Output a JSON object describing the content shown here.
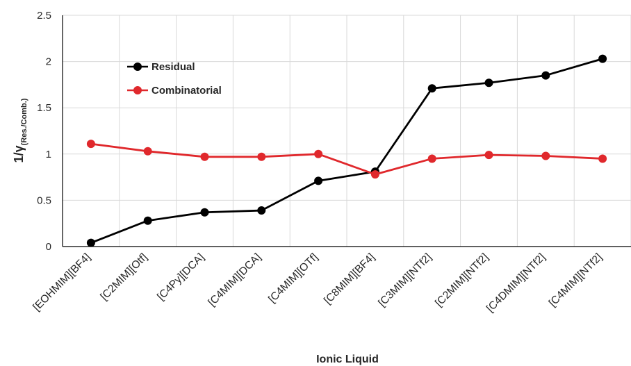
{
  "chart_data": {
    "type": "line",
    "title": "",
    "xlabel": "Ionic Liquid",
    "ylabel": {
      "main": "1/γ",
      "subscript": "(Res./Comb.)"
    },
    "ylim": [
      0,
      2.5
    ],
    "yticks": [
      "0",
      "0.5",
      "1",
      "1.5",
      "2",
      "2.5"
    ],
    "ytick_values": [
      0,
      0.5,
      1,
      1.5,
      2,
      2.5
    ],
    "grid": true,
    "legend_position": "top-left",
    "categories": [
      "[EOHMIM][BF4]",
      "[C2MIM][Otf]",
      "[C4Py][DCA]",
      "[C4MIM][DCA]",
      "[C4MIM][OTf]",
      "[C8MIM][BF4]",
      "[C3MIM][NTf2]",
      "[C2MIM][NTf2]",
      "[C4DMIM][NTf2]",
      "[C4MIM][NTf2]"
    ],
    "series": [
      {
        "name": "Residual",
        "color": "#000000",
        "values": [
          0.04,
          0.28,
          0.37,
          0.39,
          0.71,
          0.81,
          1.71,
          1.77,
          1.85,
          2.03
        ]
      },
      {
        "name": "Combinatorial",
        "color": "#e0282c",
        "values": [
          1.11,
          1.03,
          0.97,
          0.97,
          1.0,
          0.78,
          0.95,
          0.99,
          0.98,
          0.95
        ]
      }
    ]
  }
}
